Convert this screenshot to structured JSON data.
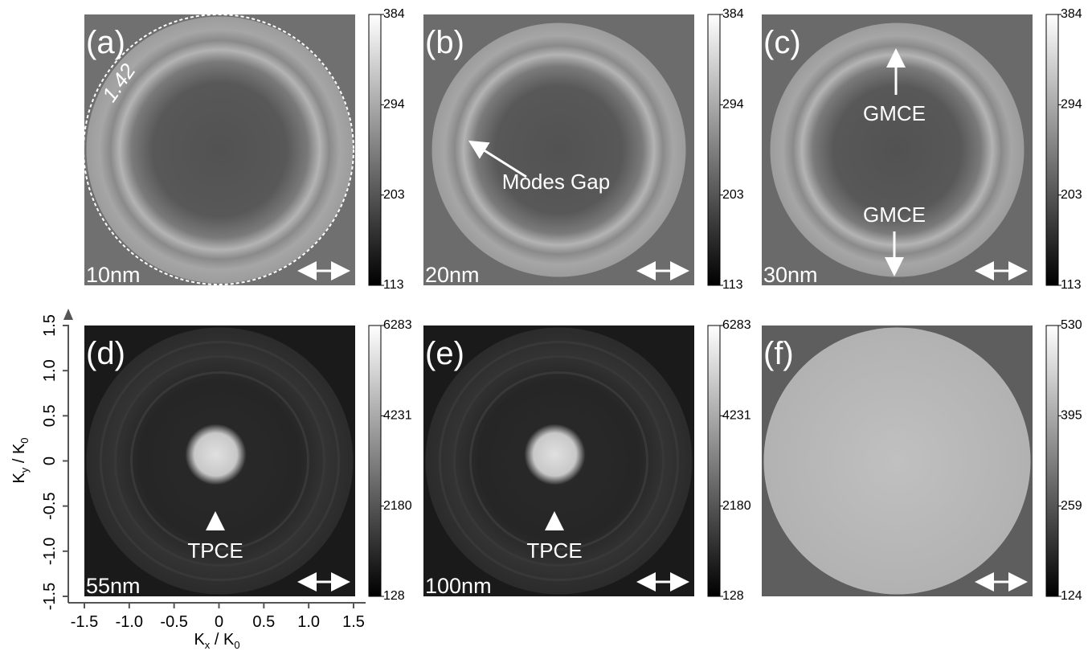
{
  "panels": [
    {
      "label": "(a)",
      "thickness": "10nm",
      "colorbar_ticks": [
        384,
        294,
        203,
        113
      ],
      "annotations": [
        "1.42"
      ]
    },
    {
      "label": "(b)",
      "thickness": "20nm",
      "colorbar_ticks": [
        384,
        294,
        203,
        113
      ],
      "annotations": [
        "Modes Gap"
      ]
    },
    {
      "label": "(c)",
      "thickness": "30nm",
      "colorbar_ticks": [
        384,
        294,
        203,
        113
      ],
      "annotations": [
        "GMCE",
        "GMCE"
      ]
    },
    {
      "label": "(d)",
      "thickness": "55nm",
      "colorbar_ticks": [
        6283,
        4231,
        2180,
        128
      ],
      "annotations": [
        "TPCE"
      ]
    },
    {
      "label": "(e)",
      "thickness": "100nm",
      "colorbar_ticks": [
        6283,
        4231,
        2180,
        128
      ],
      "annotations": [
        "TPCE"
      ]
    },
    {
      "label": "(f)",
      "colorbar_ticks": [
        530,
        395,
        259,
        124
      ]
    }
  ],
  "axes": {
    "y_ticks": [
      "1.5",
      "1.0",
      "0.5",
      "0",
      "-0.5",
      "-1.0",
      "-1.5"
    ],
    "x_ticks": [
      "-1.5",
      "-1.0",
      "-0.5",
      "0",
      "0.5",
      "1.0",
      "1.5"
    ],
    "y_title": [
      "K",
      "y",
      " / K",
      "0"
    ],
    "x_title": [
      "K",
      "x",
      " / K",
      "0"
    ]
  }
}
